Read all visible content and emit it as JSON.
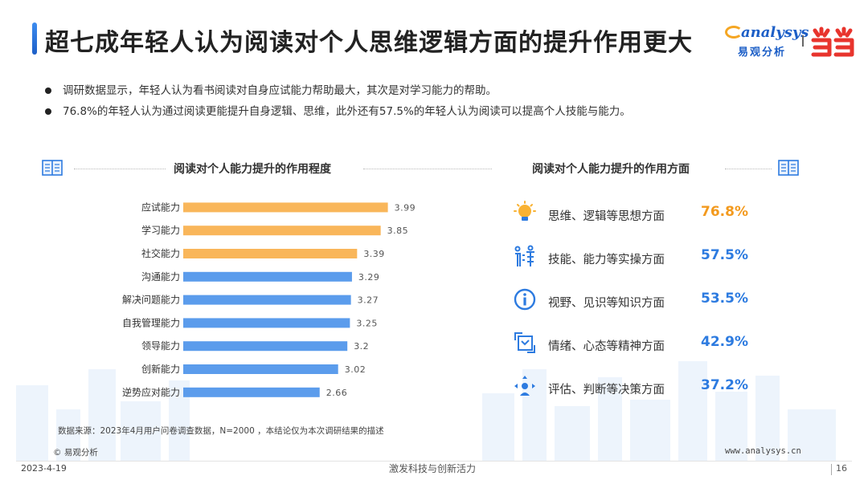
{
  "header": {
    "title": "超七成年轻人认为阅读对个人思维逻辑方面的提升作用更大",
    "logo_brand": "analysys",
    "logo_sub": "易观分析",
    "accent": "#2d7be0"
  },
  "bullets": [
    "调研数据显示，年轻人认为看书阅读对自身应试能力帮助最大，其次是对学习能力的帮助。",
    "76.8%的年轻人认为通过阅读更能提升自身逻辑、思维，此外还有57.5%的年轻人认为阅读可以提高个人技能与能力。"
  ],
  "left_panel": {
    "title": "阅读对个人能力提升的作用程度"
  },
  "right_panel": {
    "title": "阅读对个人能力提升的作用方面"
  },
  "chart_data": {
    "type": "bar",
    "orientation": "horizontal",
    "title": "阅读对个人能力提升的作用程度",
    "categories": [
      "应试能力",
      "学习能力",
      "社交能力",
      "沟通能力",
      "解决问题能力",
      "自我管理能力",
      "领导能力",
      "创新能力",
      "逆势应对能力"
    ],
    "values": [
      3.99,
      3.85,
      3.39,
      3.29,
      3.27,
      3.25,
      3.2,
      3.02,
      2.66
    ],
    "value_labels": [
      "3.99",
      "3.85",
      "3.39",
      "3.29",
      "3.27",
      "3.25",
      "3.2",
      "3.02",
      "2.66"
    ],
    "bar_colors": [
      "#f9b65a",
      "#f9b65a",
      "#f9b65a",
      "#5b9cec",
      "#5b9cec",
      "#5b9cec",
      "#5b9cec",
      "#5b9cec",
      "#5b9cec"
    ],
    "xlim": [
      0,
      4.2
    ],
    "grid": false,
    "legend": "none"
  },
  "aspects": [
    {
      "icon": "lightbulb-icon",
      "label": "思维、逻辑等思想方面",
      "percent": "76.8%",
      "color": "#f39a1e"
    },
    {
      "icon": "skills-icon",
      "label": "技能、能力等实操方面",
      "percent": "57.5%",
      "color": "#2d7be0"
    },
    {
      "icon": "info-icon",
      "label": "视野、见识等知识方面",
      "percent": "53.5%",
      "color": "#2d7be0"
    },
    {
      "icon": "emotion-icon",
      "label": "情绪、心态等精神方面",
      "percent": "42.9%",
      "color": "#2d7be0"
    },
    {
      "icon": "decision-icon",
      "label": "评估、判断等决策方面",
      "percent": "37.2%",
      "color": "#2d7be0"
    }
  ],
  "footer": {
    "source": "数据来源：2023年4月用户问卷调查数据，N=2000 ，本结论仅为本次调研结果的描述",
    "copyright": "© 易观分析",
    "website": "www.analysys.cn",
    "date": "2023-4-19",
    "slogan": "激发科技与创新活力",
    "page": "16"
  }
}
